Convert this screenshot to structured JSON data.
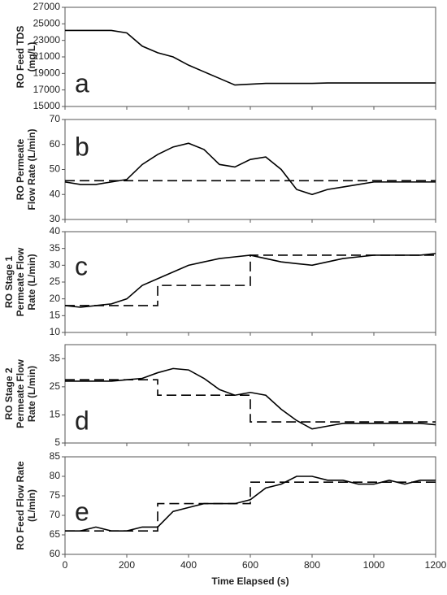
{
  "chart_data": [
    {
      "type": "line",
      "annotation": "a",
      "ylabel": [
        "RO Feed TDS",
        "(mg/L)"
      ],
      "xlim": [
        0,
        1200
      ],
      "ylim": [
        15000,
        27000
      ],
      "yticks": [
        15000,
        17000,
        19000,
        21000,
        23000,
        25000,
        27000
      ],
      "series": [
        {
          "color": "#000000",
          "style": "solid",
          "x": [
            0,
            50,
            100,
            150,
            200,
            250,
            300,
            350,
            400,
            450,
            500,
            550,
            600,
            650,
            700,
            750,
            800,
            850,
            900,
            950,
            1000,
            1050,
            1100,
            1150,
            1200
          ],
          "values": [
            24200,
            24200,
            24200,
            24200,
            23900,
            22300,
            21500,
            21000,
            20000,
            19200,
            18400,
            17600,
            17700,
            17800,
            17800,
            17800,
            17800,
            17850,
            17850,
            17850,
            17850,
            17850,
            17850,
            17850,
            17850
          ]
        }
      ]
    },
    {
      "type": "line",
      "annotation": "b",
      "ylabel": [
        "RO Permeate",
        "Flow Rate (L/min)"
      ],
      "xlim": [
        0,
        1200
      ],
      "ylim": [
        30,
        70
      ],
      "yticks": [
        30,
        40,
        50,
        60,
        70
      ],
      "series": [
        {
          "color": "#000000",
          "style": "solid",
          "x": [
            0,
            50,
            100,
            150,
            200,
            250,
            300,
            350,
            400,
            450,
            500,
            550,
            600,
            650,
            700,
            750,
            800,
            850,
            900,
            950,
            1000,
            1050,
            1100,
            1150,
            1200
          ],
          "values": [
            45,
            44,
            44,
            45,
            46,
            52,
            56,
            59,
            60.5,
            58,
            52,
            51,
            54,
            55,
            50,
            42,
            40,
            42,
            43,
            44,
            45,
            45,
            45,
            45,
            45
          ]
        },
        {
          "color": "#000000",
          "style": "dashed",
          "x": [
            0,
            1200
          ],
          "values": [
            45.5,
            45.5
          ]
        }
      ]
    },
    {
      "type": "line",
      "annotation": "c",
      "ylabel": [
        "RO Stage 1",
        "Permeate Flow",
        "Rate (L/min)"
      ],
      "xlim": [
        0,
        1200
      ],
      "ylim": [
        10,
        40
      ],
      "yticks": [
        10,
        15,
        20,
        25,
        30,
        35,
        40
      ],
      "series": [
        {
          "color": "#000000",
          "style": "solid",
          "x": [
            0,
            50,
            100,
            150,
            200,
            250,
            300,
            350,
            400,
            450,
            500,
            550,
            600,
            650,
            700,
            750,
            800,
            850,
            900,
            950,
            1000,
            1050,
            1100,
            1150,
            1200
          ],
          "values": [
            18,
            17.5,
            18,
            18.5,
            20,
            24,
            26,
            28,
            30,
            31,
            32,
            32.5,
            33,
            32,
            31,
            30.5,
            30,
            31,
            32,
            32.5,
            33,
            33,
            33,
            33,
            33.5
          ]
        },
        {
          "color": "#000000",
          "style": "dashed",
          "x": [
            0,
            300,
            300,
            600,
            600,
            1200
          ],
          "values": [
            18,
            18,
            24,
            24,
            33,
            33
          ]
        }
      ]
    },
    {
      "type": "line",
      "annotation": "d",
      "ylabel": [
        "RO Stage 2",
        "Permeate Flow",
        "Rate (L/min)"
      ],
      "xlim": [
        0,
        1200
      ],
      "ylim": [
        5,
        40
      ],
      "yticks": [
        5,
        15,
        25,
        35
      ],
      "series": [
        {
          "color": "#000000",
          "style": "solid",
          "x": [
            0,
            50,
            100,
            150,
            200,
            250,
            300,
            350,
            400,
            450,
            500,
            550,
            600,
            650,
            700,
            750,
            800,
            850,
            900,
            950,
            1000,
            1050,
            1100,
            1150,
            1200
          ],
          "values": [
            27,
            27,
            27,
            27,
            27.5,
            28,
            30,
            31.5,
            31,
            28,
            24,
            22,
            23,
            22,
            17,
            13,
            10,
            11,
            12,
            12,
            12,
            12,
            12,
            12,
            11.5
          ]
        },
        {
          "color": "#000000",
          "style": "dashed",
          "x": [
            0,
            300,
            300,
            600,
            600,
            1200
          ],
          "values": [
            27.5,
            27.5,
            22,
            22,
            12.5,
            12.5
          ]
        }
      ]
    },
    {
      "type": "line",
      "annotation": "e",
      "ylabel": [
        "RO Feed Flow Rate",
        "(L/min)"
      ],
      "xlabel": "Time Elapsed (s)",
      "xlim": [
        0,
        1200
      ],
      "xticks": [
        0,
        200,
        400,
        600,
        800,
        1000,
        1200
      ],
      "ylim": [
        60,
        85
      ],
      "yticks": [
        60,
        65,
        70,
        75,
        80,
        85
      ],
      "series": [
        {
          "color": "#000000",
          "style": "solid",
          "x": [
            0,
            50,
            100,
            150,
            200,
            250,
            300,
            350,
            400,
            450,
            500,
            550,
            600,
            650,
            700,
            750,
            800,
            850,
            900,
            950,
            1000,
            1050,
            1100,
            1150,
            1200
          ],
          "values": [
            66,
            66,
            67,
            66,
            66,
            67,
            67,
            71,
            72,
            73,
            73,
            73,
            74,
            77,
            78,
            80,
            80,
            79,
            79,
            78,
            78,
            79,
            78,
            79,
            79
          ]
        },
        {
          "color": "#000000",
          "style": "dashed",
          "x": [
            0,
            300,
            300,
            600,
            600,
            1200
          ],
          "values": [
            66,
            66,
            73,
            73,
            78.5,
            78.5
          ]
        }
      ]
    }
  ]
}
